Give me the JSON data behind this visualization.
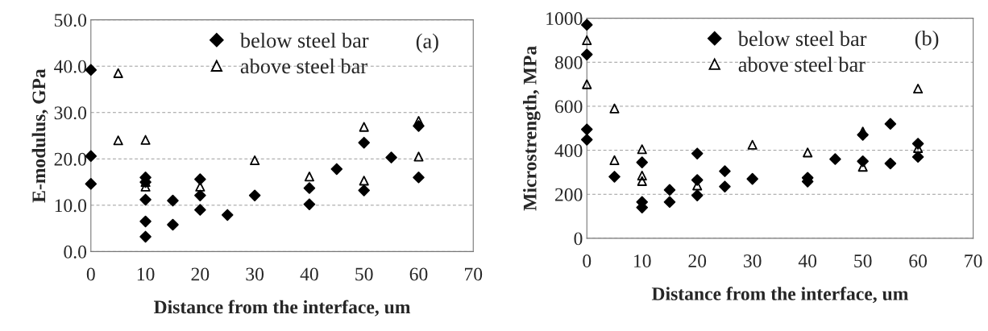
{
  "chart_data": [
    {
      "type": "scatter",
      "xlabel": "Distance from the interface, um",
      "ylabel": "E-modulus, GPa",
      "annotations": [
        "(a)"
      ],
      "xlim": [
        0,
        70
      ],
      "xticks": [
        0,
        10,
        20,
        30,
        40,
        50,
        60,
        70
      ],
      "ylim": [
        0,
        50
      ],
      "yticks": [
        {
          "value": 0,
          "label": "0.0"
        },
        {
          "value": 10,
          "label": "10.0"
        },
        {
          "value": 20,
          "label": "20.0"
        },
        {
          "value": 30,
          "label": "30.0"
        },
        {
          "value": 40,
          "label": "40.0"
        },
        {
          "value": 50,
          "label": "50.0"
        }
      ],
      "grid": "y",
      "legend": "top",
      "series": [
        {
          "name": "below steel bar",
          "color": "#000000",
          "marker": "diamond",
          "x": [
            0,
            0,
            0,
            10,
            10,
            10,
            10,
            10,
            15,
            15,
            20,
            20,
            20,
            25,
            30,
            40,
            40,
            45,
            50,
            50,
            55,
            60,
            60
          ],
          "values": [
            39.2,
            20.6,
            14.6,
            16.0,
            15.0,
            11.2,
            6.5,
            3.2,
            11.0,
            5.8,
            15.6,
            12.1,
            9.0,
            7.9,
            12.1,
            13.7,
            10.2,
            17.8,
            23.5,
            13.2,
            20.3,
            27.1,
            16.0
          ]
        },
        {
          "name": "above steel bar",
          "color": "#000000",
          "marker": "triangle",
          "x": [
            5,
            5,
            10,
            10,
            10,
            20,
            30,
            40,
            50,
            50,
            60,
            60
          ],
          "values": [
            38.5,
            24.0,
            24.1,
            14.0,
            15.0,
            14.0,
            19.7,
            16.2,
            26.9,
            15.3,
            28.2,
            20.5
          ]
        }
      ]
    },
    {
      "type": "scatter",
      "xlabel": "Distance from the interface, um",
      "ylabel": "Microstrength, MPa",
      "annotations": [
        "(b)"
      ],
      "xlim": [
        0,
        70
      ],
      "xticks": [
        0,
        10,
        20,
        30,
        40,
        50,
        60,
        70
      ],
      "ylim": [
        0,
        1000
      ],
      "yticks": [
        0,
        200,
        400,
        600,
        800,
        1000
      ],
      "grid": "y",
      "legend": "top",
      "series": [
        {
          "name": "below steel bar",
          "color": "#000000",
          "marker": "diamond",
          "x": [
            0,
            0,
            0,
            0,
            5,
            10,
            10,
            10,
            15,
            15,
            20,
            20,
            20,
            25,
            25,
            30,
            40,
            40,
            45,
            50,
            50,
            55,
            55,
            60,
            60
          ],
          "values": [
            970,
            835,
            495,
            448,
            280,
            345,
            165,
            140,
            220,
            165,
            385,
            265,
            195,
            305,
            235,
            270,
            275,
            258,
            360,
            470,
            350,
            520,
            340,
            430,
            370
          ]
        },
        {
          "name": "above steel bar",
          "color": "#000000",
          "marker": "triangle",
          "x": [
            0,
            0,
            5,
            5,
            10,
            10,
            10,
            20,
            30,
            40,
            50,
            50,
            60,
            60
          ],
          "values": [
            900,
            700,
            590,
            355,
            405,
            285,
            260,
            240,
            425,
            390,
            485,
            325,
            680,
            410
          ]
        }
      ]
    }
  ]
}
